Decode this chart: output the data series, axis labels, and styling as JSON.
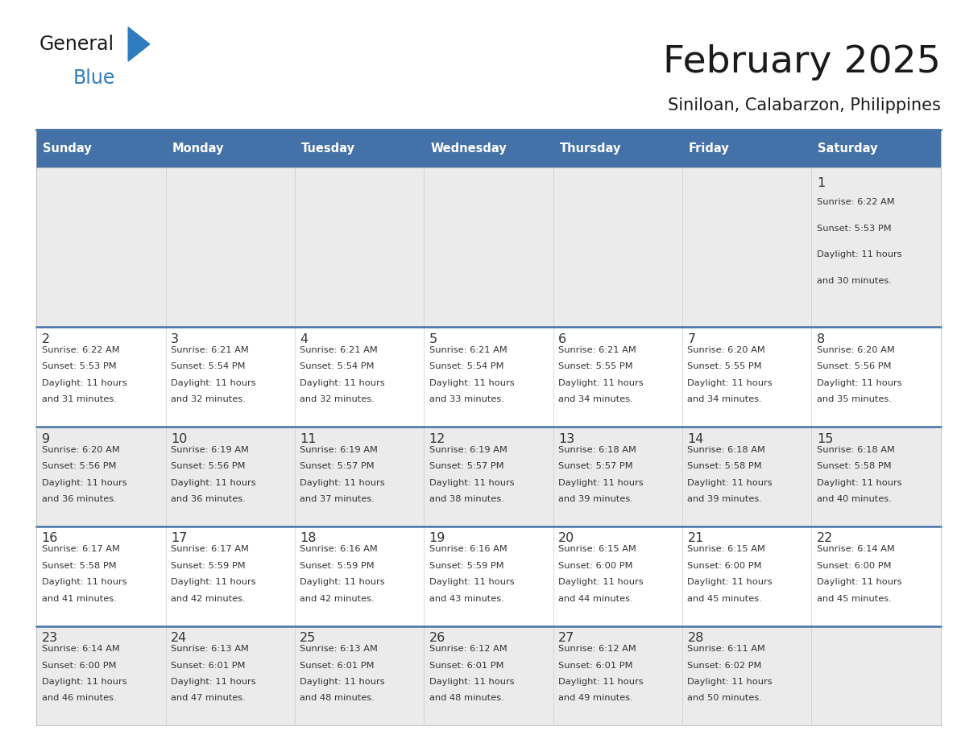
{
  "title": "February 2025",
  "subtitle": "Siniloan, Calabarzon, Philippines",
  "header_color": "#4472a8",
  "header_text_color": "#ffffff",
  "day_headers": [
    "Sunday",
    "Monday",
    "Tuesday",
    "Wednesday",
    "Thursday",
    "Friday",
    "Saturday"
  ],
  "bg_color": "#ffffff",
  "cell_bg_row0": "#ebebeb",
  "cell_bg_row1": "#ffffff",
  "cell_bg_row2": "#ebebeb",
  "cell_bg_row3": "#ffffff",
  "cell_bg_row4": "#ebebeb",
  "day_num_color": "#333333",
  "text_color": "#333333",
  "border_color": "#4472a8",
  "logo_general_color": "#222222",
  "logo_blue_color": "#2e7bbf",
  "calendar": [
    [
      null,
      null,
      null,
      null,
      null,
      null,
      {
        "day": 1,
        "sunrise": "6:22 AM",
        "sunset": "5:53 PM",
        "daylight": "11 hours and 30 minutes."
      }
    ],
    [
      {
        "day": 2,
        "sunrise": "6:22 AM",
        "sunset": "5:53 PM",
        "daylight": "11 hours and 31 minutes."
      },
      {
        "day": 3,
        "sunrise": "6:21 AM",
        "sunset": "5:54 PM",
        "daylight": "11 hours and 32 minutes."
      },
      {
        "day": 4,
        "sunrise": "6:21 AM",
        "sunset": "5:54 PM",
        "daylight": "11 hours and 32 minutes."
      },
      {
        "day": 5,
        "sunrise": "6:21 AM",
        "sunset": "5:54 PM",
        "daylight": "11 hours and 33 minutes."
      },
      {
        "day": 6,
        "sunrise": "6:21 AM",
        "sunset": "5:55 PM",
        "daylight": "11 hours and 34 minutes."
      },
      {
        "day": 7,
        "sunrise": "6:20 AM",
        "sunset": "5:55 PM",
        "daylight": "11 hours and 34 minutes."
      },
      {
        "day": 8,
        "sunrise": "6:20 AM",
        "sunset": "5:56 PM",
        "daylight": "11 hours and 35 minutes."
      }
    ],
    [
      {
        "day": 9,
        "sunrise": "6:20 AM",
        "sunset": "5:56 PM",
        "daylight": "11 hours and 36 minutes."
      },
      {
        "day": 10,
        "sunrise": "6:19 AM",
        "sunset": "5:56 PM",
        "daylight": "11 hours and 36 minutes."
      },
      {
        "day": 11,
        "sunrise": "6:19 AM",
        "sunset": "5:57 PM",
        "daylight": "11 hours and 37 minutes."
      },
      {
        "day": 12,
        "sunrise": "6:19 AM",
        "sunset": "5:57 PM",
        "daylight": "11 hours and 38 minutes."
      },
      {
        "day": 13,
        "sunrise": "6:18 AM",
        "sunset": "5:57 PM",
        "daylight": "11 hours and 39 minutes."
      },
      {
        "day": 14,
        "sunrise": "6:18 AM",
        "sunset": "5:58 PM",
        "daylight": "11 hours and 39 minutes."
      },
      {
        "day": 15,
        "sunrise": "6:18 AM",
        "sunset": "5:58 PM",
        "daylight": "11 hours and 40 minutes."
      }
    ],
    [
      {
        "day": 16,
        "sunrise": "6:17 AM",
        "sunset": "5:58 PM",
        "daylight": "11 hours and 41 minutes."
      },
      {
        "day": 17,
        "sunrise": "6:17 AM",
        "sunset": "5:59 PM",
        "daylight": "11 hours and 42 minutes."
      },
      {
        "day": 18,
        "sunrise": "6:16 AM",
        "sunset": "5:59 PM",
        "daylight": "11 hours and 42 minutes."
      },
      {
        "day": 19,
        "sunrise": "6:16 AM",
        "sunset": "5:59 PM",
        "daylight": "11 hours and 43 minutes."
      },
      {
        "day": 20,
        "sunrise": "6:15 AM",
        "sunset": "6:00 PM",
        "daylight": "11 hours and 44 minutes."
      },
      {
        "day": 21,
        "sunrise": "6:15 AM",
        "sunset": "6:00 PM",
        "daylight": "11 hours and 45 minutes."
      },
      {
        "day": 22,
        "sunrise": "6:14 AM",
        "sunset": "6:00 PM",
        "daylight": "11 hours and 45 minutes."
      }
    ],
    [
      {
        "day": 23,
        "sunrise": "6:14 AM",
        "sunset": "6:00 PM",
        "daylight": "11 hours and 46 minutes."
      },
      {
        "day": 24,
        "sunrise": "6:13 AM",
        "sunset": "6:01 PM",
        "daylight": "11 hours and 47 minutes."
      },
      {
        "day": 25,
        "sunrise": "6:13 AM",
        "sunset": "6:01 PM",
        "daylight": "11 hours and 48 minutes."
      },
      {
        "day": 26,
        "sunrise": "6:12 AM",
        "sunset": "6:01 PM",
        "daylight": "11 hours and 48 minutes."
      },
      {
        "day": 27,
        "sunrise": "6:12 AM",
        "sunset": "6:01 PM",
        "daylight": "11 hours and 49 minutes."
      },
      {
        "day": 28,
        "sunrise": "6:11 AM",
        "sunset": "6:02 PM",
        "daylight": "11 hours and 50 minutes."
      },
      null
    ]
  ]
}
